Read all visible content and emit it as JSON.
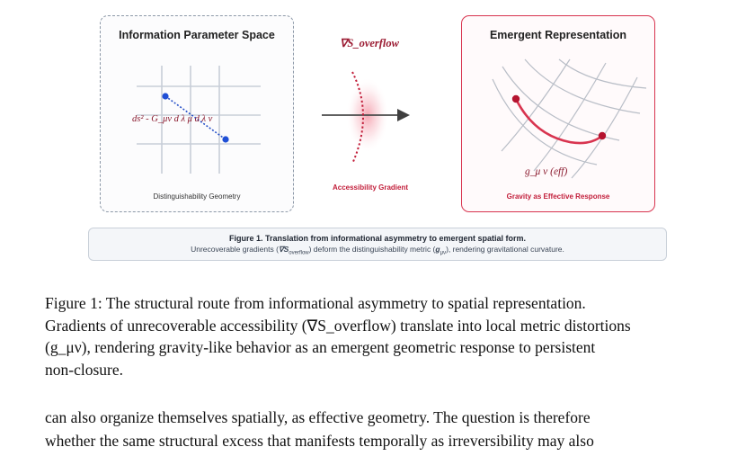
{
  "figure": {
    "left_panel": {
      "title": "Information Parameter Space",
      "formula": "ds² - G_μν d λ μ d λ ν",
      "caption": "Distinguishability Geometry"
    },
    "middle": {
      "gradient_label": "∇S_overflow",
      "caption": "Accessibility Gradient"
    },
    "right_panel": {
      "title": "Emergent Representation",
      "metric_label": "g_μ ν (eff)",
      "caption": "Gravity as Effective Response"
    },
    "inner_caption": {
      "title": "Figure 1. Translation from informational asymmetry to emergent spatial form.",
      "subtitle_a": "Unrecoverable gradients (",
      "subtitle_sym": "∇S",
      "subtitle_sub": "overflow",
      "subtitle_b": ") deform the distinguishability metric (",
      "subtitle_g": "g",
      "subtitle_gsub": "μν",
      "subtitle_c": "), rendering gravitational curvature."
    },
    "colors": {
      "accent": "#d8344f",
      "dot_blue": "#1f4fd6",
      "grid": "#c8ced8"
    }
  },
  "caption": {
    "lines": [
      "Figure 1: The structural route from informational asymmetry to spatial representation.",
      "Gradients of unrecoverable accessibility (∇S_overflow) translate into local metric distortions",
      "(g_μν), rendering gravity-like behavior as an emergent geometric response to persistent",
      "non-closure."
    ]
  },
  "body": {
    "lines": [
      "can also organize themselves spatially, as effective geometry. The question is therefore",
      "whether the same structural excess that manifests temporally as irreversibility may also"
    ]
  }
}
